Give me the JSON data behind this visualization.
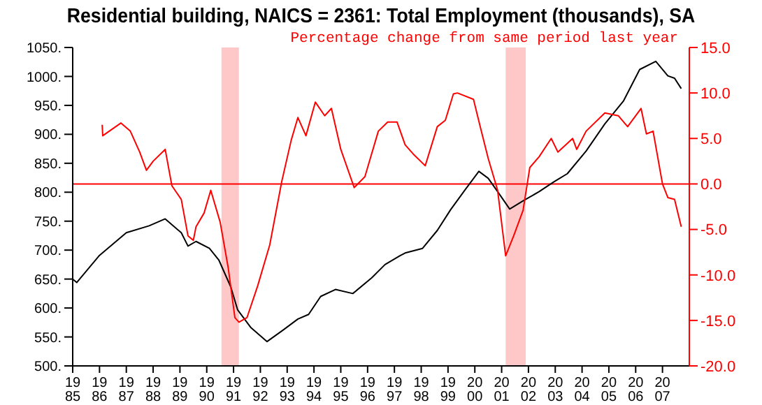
{
  "chart_data": {
    "type": "line",
    "title": "Residential building, NAICS = 2361: Total Employment (thousands), SA",
    "y2label": "Percentage change from same period last year",
    "marker": "none",
    "line_style": "solid",
    "xlim": [
      1985,
      2008
    ],
    "xticks": [
      1985,
      1986,
      1987,
      1988,
      1989,
      1990,
      1991,
      1992,
      1993,
      1994,
      1995,
      1996,
      1997,
      1998,
      1999,
      2000,
      2001,
      2002,
      2003,
      2004,
      2005,
      2006,
      2007
    ],
    "ylim": [
      500,
      1050
    ],
    "yticks": [
      {
        "value": 500,
        "label": "500."
      },
      {
        "value": 550,
        "label": "550."
      },
      {
        "value": 600,
        "label": "600."
      },
      {
        "value": 650,
        "label": "650."
      },
      {
        "value": 700,
        "label": "700."
      },
      {
        "value": 750,
        "label": "750."
      },
      {
        "value": 800,
        "label": "800."
      },
      {
        "value": 850,
        "label": "850."
      },
      {
        "value": 900,
        "label": "900."
      },
      {
        "value": 950,
        "label": "950."
      },
      {
        "value": 1000,
        "label": "1000."
      },
      {
        "value": 1050,
        "label": "1050."
      }
    ],
    "y2lim": [
      -20,
      15
    ],
    "y2ticks": [
      {
        "value": -20,
        "label": "-20.0"
      },
      {
        "value": -15,
        "label": "-15.0"
      },
      {
        "value": -10,
        "label": "-10.0"
      },
      {
        "value": -5,
        "label": "-5.0"
      },
      {
        "value": 0,
        "label": "0.0"
      },
      {
        "value": 5,
        "label": "5.0"
      },
      {
        "value": 10,
        "label": "10.0"
      },
      {
        "value": 15,
        "label": "15.0"
      }
    ],
    "ref_lines": [
      {
        "axis": "y2",
        "value": 0,
        "color": "#ff0000"
      }
    ],
    "bands": [
      {
        "axis": "x",
        "from": 1990.55,
        "to": 1991.2,
        "color": "#ffc8c8"
      },
      {
        "axis": "x",
        "from": 2001.15,
        "to": 2001.9,
        "color": "#ffc8c8"
      }
    ],
    "series": [
      {
        "color": "#000000",
        "x": [
          1985.0,
          1985.15,
          1986.0,
          1987.0,
          1987.85,
          1988.45,
          1989.05,
          1989.3,
          1989.6,
          1990.1,
          1990.45,
          1990.9,
          1991.15,
          1991.65,
          1992.25,
          1992.85,
          1993.4,
          1993.8,
          1994.25,
          1994.8,
          1995.45,
          1996.15,
          1996.65,
          1997.2,
          1997.4,
          1998.05,
          1998.6,
          1999.1,
          1999.65,
          2000.15,
          2000.5,
          2000.85,
          2001.3,
          2001.8,
          2002.4,
          2002.95,
          2003.45,
          2004.15,
          2004.85,
          2005.55,
          2006.15,
          2006.75,
          2007.2,
          2007.45,
          2007.7
        ],
        "values": [
          650,
          644,
          691,
          730,
          742,
          754,
          730,
          707,
          715,
          703,
          683,
          636,
          597,
          566,
          542,
          562,
          581,
          589,
          620,
          632,
          625,
          652,
          675,
          690,
          695,
          703,
          734,
          770,
          805,
          836,
          824,
          801,
          771,
          785,
          801,
          818,
          832,
          871,
          918,
          958,
          1012,
          1026,
          1001,
          997,
          979
        ]
      },
      {
        "color": "#ff0000",
        "axis": "y2",
        "x": [
          1986.1,
          1986.12,
          1986.8,
          1987.15,
          1987.5,
          1987.75,
          1988.0,
          1988.45,
          1988.7,
          1989.05,
          1989.3,
          1989.5,
          1989.6,
          1989.9,
          1990.15,
          1990.5,
          1990.8,
          1991.05,
          1991.2,
          1991.5,
          1991.9,
          1992.35,
          1992.8,
          1993.15,
          1993.4,
          1993.7,
          1994.05,
          1994.4,
          1994.65,
          1995.0,
          1995.5,
          1995.9,
          1996.4,
          1996.75,
          1997.1,
          1997.4,
          1997.7,
          1998.15,
          1998.6,
          1998.9,
          1999.2,
          1999.35,
          1999.95,
          2000.2,
          2000.5,
          2000.85,
          2001.15,
          2001.45,
          2001.8,
          2002.05,
          2002.4,
          2002.85,
          2003.1,
          2003.65,
          2003.8,
          2004.15,
          2004.85,
          2005.35,
          2005.7,
          2006.2,
          2006.4,
          2006.65,
          2007.0,
          2007.2,
          2007.45,
          2007.7
        ],
        "values": [
          6.5,
          5.3,
          6.7,
          5.8,
          3.5,
          1.5,
          2.5,
          3.8,
          -0.2,
          -1.7,
          -5.7,
          -6.2,
          -4.7,
          -3.2,
          -0.7,
          -4.2,
          -9.2,
          -14.7,
          -15.2,
          -14.7,
          -11.2,
          -6.7,
          0.3,
          4.8,
          7.3,
          5.3,
          9.0,
          7.5,
          8.3,
          3.8,
          -0.4,
          0.8,
          5.8,
          6.8,
          6.8,
          4.3,
          3.3,
          2.0,
          6.3,
          7.0,
          9.9,
          10.0,
          9.3,
          6.3,
          2.8,
          -0.7,
          -7.9,
          -5.7,
          -2.9,
          1.8,
          3.0,
          5.0,
          3.5,
          5.0,
          3.8,
          5.8,
          7.8,
          7.5,
          6.3,
          8.3,
          5.5,
          5.8,
          0.0,
          -1.5,
          -1.7,
          -4.7
        ]
      }
    ]
  }
}
